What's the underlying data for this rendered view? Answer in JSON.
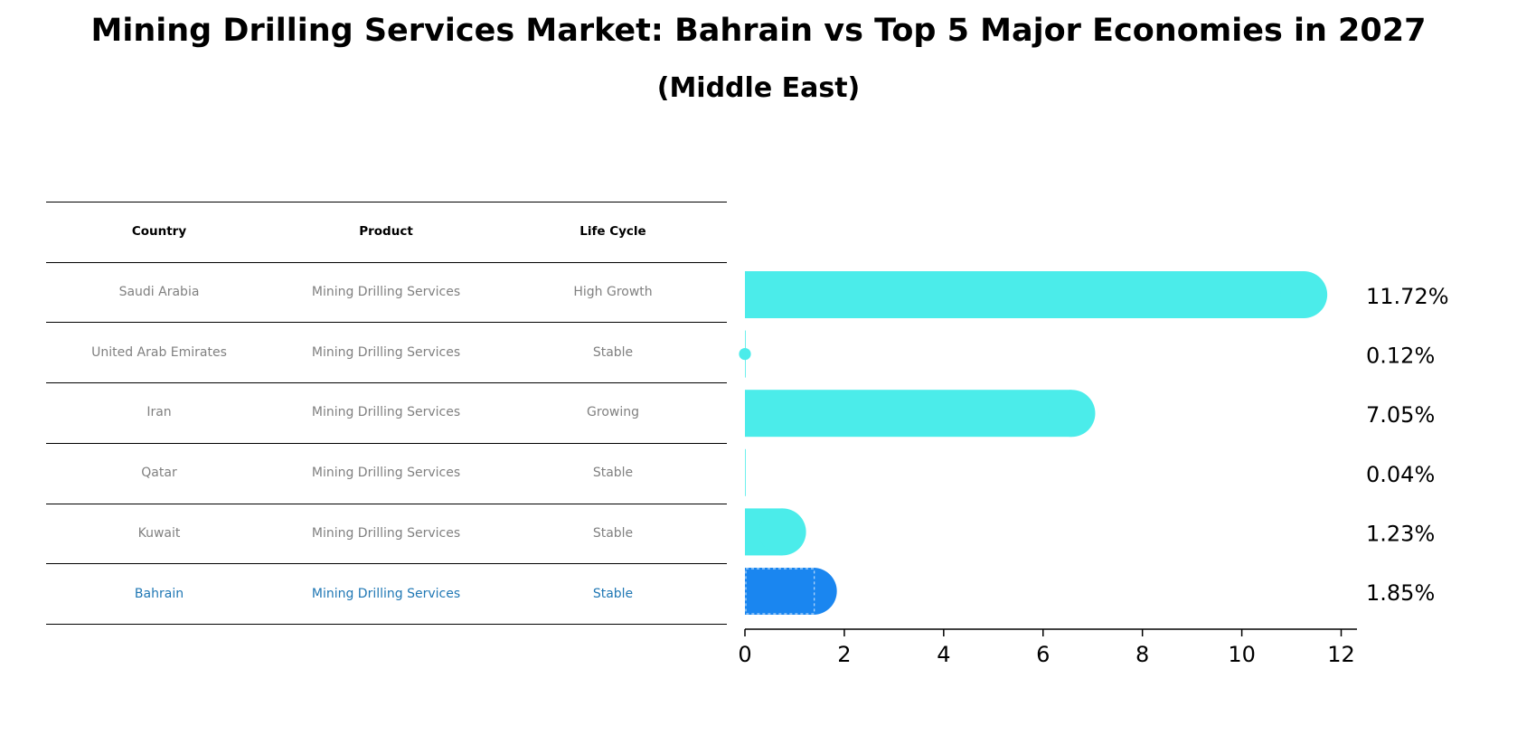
{
  "title": "Mining Drilling Services Market: Bahrain vs Top 5 Major Economies in 2027",
  "subtitle": "(Middle East)",
  "table": {
    "headers": [
      "Country",
      "Product",
      "Life Cycle"
    ],
    "rows": [
      {
        "country": "Saudi Arabia",
        "product": "Mining Drilling Services",
        "life_cycle": "High Growth",
        "highlight": false
      },
      {
        "country": "United Arab Emirates",
        "product": "Mining Drilling Services",
        "life_cycle": "Stable",
        "highlight": false
      },
      {
        "country": "Iran",
        "product": "Mining Drilling Services",
        "life_cycle": "Growing",
        "highlight": false
      },
      {
        "country": "Qatar",
        "product": "Mining Drilling Services",
        "life_cycle": "Stable",
        "highlight": false
      },
      {
        "country": "Kuwait",
        "product": "Mining Drilling Services",
        "life_cycle": "Stable",
        "highlight": false
      },
      {
        "country": "Bahrain",
        "product": "Mining Drilling Services",
        "life_cycle": "Stable",
        "highlight": true
      }
    ]
  },
  "chart_data": {
    "type": "bar",
    "orientation": "horizontal",
    "categories": [
      "Saudi Arabia",
      "United Arab Emirates",
      "Iran",
      "Qatar",
      "Kuwait",
      "Bahrain"
    ],
    "values": [
      11.72,
      0.12,
      7.05,
      0.04,
      1.23,
      1.85
    ],
    "value_labels": [
      "11.72%",
      "0.12%",
      "7.05%",
      "0.04%",
      "1.23%",
      "1.85%"
    ],
    "xlim": [
      0,
      12.3
    ],
    "xticks": [
      0,
      2,
      4,
      6,
      8,
      10,
      12
    ],
    "xtick_labels": [
      "0",
      "2",
      "4",
      "6",
      "8",
      "10",
      "12"
    ],
    "highlight_category": "Bahrain",
    "grid": false
  },
  "colors": {
    "bar": "#4BECEA",
    "highlight_bar": "#1A86F0",
    "highlight_text": "#1f77b4",
    "muted_text": "#808080"
  }
}
